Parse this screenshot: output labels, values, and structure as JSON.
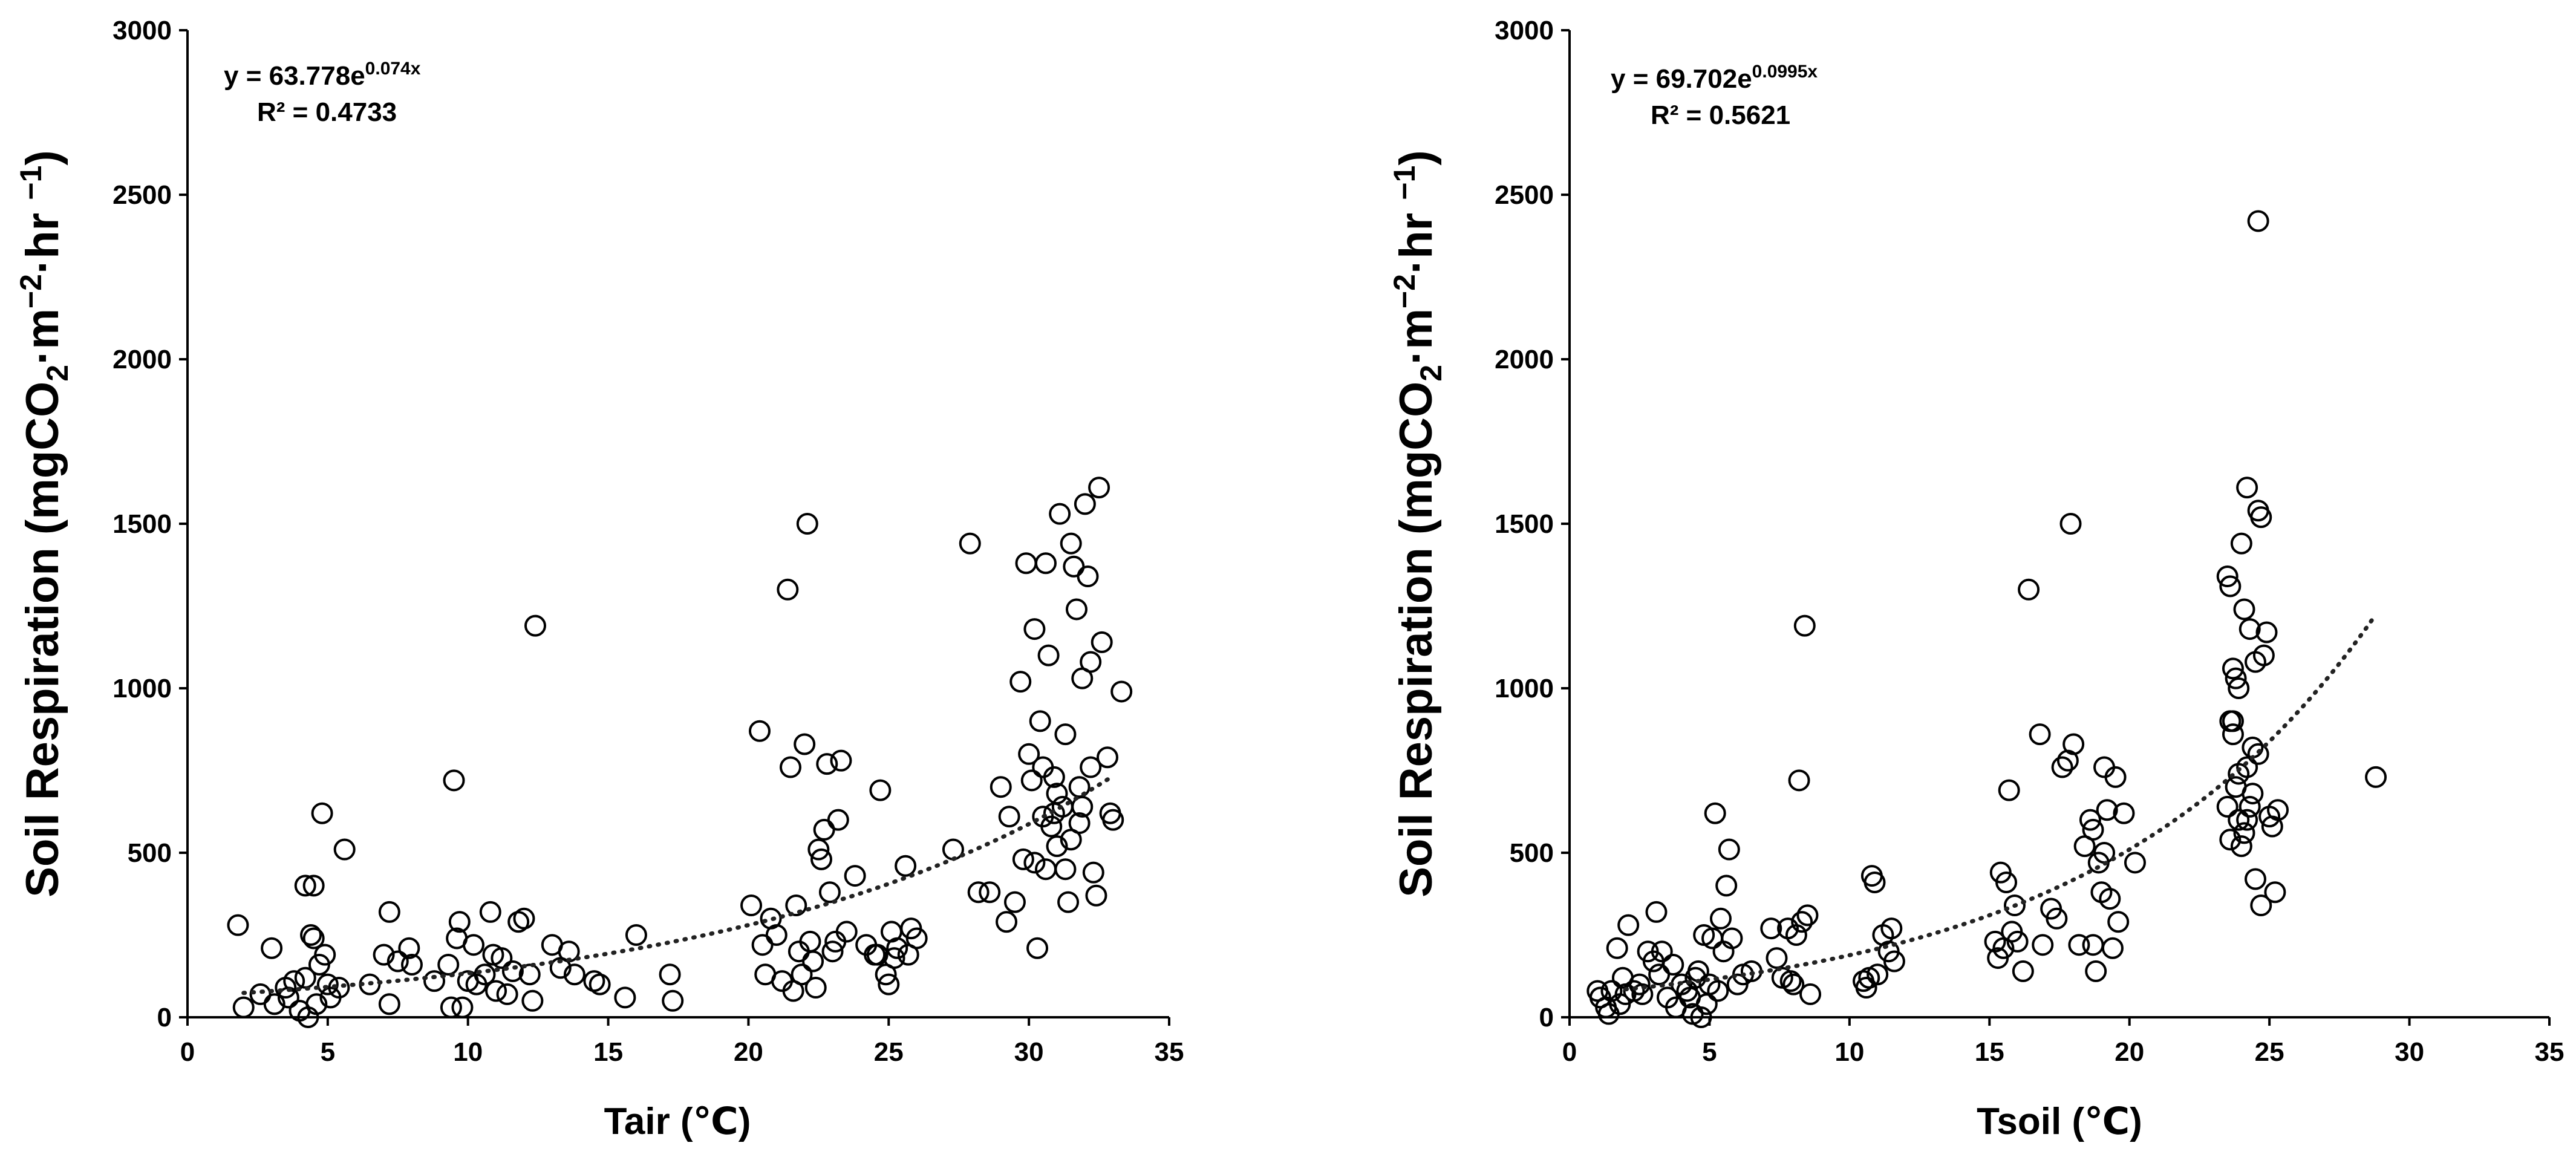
{
  "chart_data": [
    {
      "type": "scatter",
      "panel": "left",
      "xlabel": "Tair (℃)",
      "ylabel": {
        "prefix": "Soil Respiration (mgCO",
        "sub": "2",
        "middle": "·m",
        "sup1": "−2",
        "after": "·hr ",
        "sup2": "−1",
        "suffix": ")"
      },
      "xlim": [
        0,
        35
      ],
      "ylim": [
        0,
        3000
      ],
      "xticks": [
        "0",
        "5",
        "10",
        "15",
        "20",
        "25",
        "30",
        "35"
      ],
      "yticks": [
        "0",
        "500",
        "1000",
        "1500",
        "2000",
        "2500",
        "3000"
      ],
      "equation": {
        "base": "y = 63.778e",
        "exponent": "0.074x",
        "r2": "R² = 0.4733"
      },
      "trendline": {
        "a": 63.778,
        "b": 0.074,
        "x_start": 2,
        "x_end": 33
      },
      "points": [
        [
          1.8,
          280
        ],
        [
          2.0,
          30
        ],
        [
          2.6,
          70
        ],
        [
          3.0,
          210
        ],
        [
          3.1,
          40
        ],
        [
          3.5,
          90
        ],
        [
          3.6,
          60
        ],
        [
          3.8,
          110
        ],
        [
          4.0,
          20
        ],
        [
          4.2,
          120
        ],
        [
          4.2,
          400
        ],
        [
          4.3,
          0
        ],
        [
          4.4,
          250
        ],
        [
          4.5,
          240
        ],
        [
          4.5,
          400
        ],
        [
          4.6,
          40
        ],
        [
          4.7,
          160
        ],
        [
          4.8,
          620
        ],
        [
          4.9,
          190
        ],
        [
          5.0,
          100
        ],
        [
          5.1,
          60
        ],
        [
          5.4,
          90
        ],
        [
          5.6,
          510
        ],
        [
          6.5,
          100
        ],
        [
          7.0,
          190
        ],
        [
          7.2,
          40
        ],
        [
          7.2,
          320
        ],
        [
          7.5,
          170
        ],
        [
          7.9,
          210
        ],
        [
          8.0,
          160
        ],
        [
          8.8,
          110
        ],
        [
          9.3,
          160
        ],
        [
          9.4,
          30
        ],
        [
          9.5,
          720
        ],
        [
          9.6,
          240
        ],
        [
          9.7,
          290
        ],
        [
          9.8,
          30
        ],
        [
          10.0,
          110
        ],
        [
          10.2,
          220
        ],
        [
          10.3,
          100
        ],
        [
          10.6,
          130
        ],
        [
          10.8,
          320
        ],
        [
          10.9,
          190
        ],
        [
          11.0,
          80
        ],
        [
          11.2,
          180
        ],
        [
          11.4,
          70
        ],
        [
          11.6,
          140
        ],
        [
          11.8,
          290
        ],
        [
          12.0,
          300
        ],
        [
          12.2,
          130
        ],
        [
          12.3,
          50
        ],
        [
          12.4,
          1190
        ],
        [
          13.0,
          220
        ],
        [
          13.3,
          150
        ],
        [
          13.6,
          200
        ],
        [
          13.8,
          130
        ],
        [
          14.5,
          110
        ],
        [
          14.7,
          100
        ],
        [
          15.6,
          60
        ],
        [
          16.0,
          250
        ],
        [
          17.2,
          130
        ],
        [
          17.3,
          50
        ],
        [
          20.1,
          340
        ],
        [
          20.4,
          870
        ],
        [
          20.5,
          220
        ],
        [
          20.6,
          130
        ],
        [
          20.8,
          300
        ],
        [
          21.0,
          250
        ],
        [
          21.2,
          110
        ],
        [
          21.4,
          1300
        ],
        [
          21.5,
          760
        ],
        [
          21.6,
          80
        ],
        [
          21.7,
          340
        ],
        [
          21.8,
          200
        ],
        [
          21.9,
          130
        ],
        [
          22.0,
          830
        ],
        [
          22.1,
          1500
        ],
        [
          22.2,
          230
        ],
        [
          22.3,
          170
        ],
        [
          22.4,
          90
        ],
        [
          22.5,
          510
        ],
        [
          22.6,
          480
        ],
        [
          22.7,
          570
        ],
        [
          22.8,
          770
        ],
        [
          22.9,
          380
        ],
        [
          23.0,
          200
        ],
        [
          23.1,
          230
        ],
        [
          23.2,
          600
        ],
        [
          23.3,
          780
        ],
        [
          23.5,
          260
        ],
        [
          23.8,
          430
        ],
        [
          24.2,
          220
        ],
        [
          24.5,
          190
        ],
        [
          24.6,
          190
        ],
        [
          24.7,
          690
        ],
        [
          24.9,
          130
        ],
        [
          25.0,
          100
        ],
        [
          25.1,
          260
        ],
        [
          25.2,
          180
        ],
        [
          25.3,
          210
        ],
        [
          25.6,
          460
        ],
        [
          25.7,
          190
        ],
        [
          25.8,
          270
        ],
        [
          26.0,
          240
        ],
        [
          27.3,
          510
        ],
        [
          27.9,
          1440
        ],
        [
          28.2,
          380
        ],
        [
          28.6,
          380
        ],
        [
          29.0,
          700
        ],
        [
          29.2,
          290
        ],
        [
          29.3,
          610
        ],
        [
          29.5,
          350
        ],
        [
          29.7,
          1020
        ],
        [
          29.9,
          1380
        ],
        [
          30.0,
          800
        ],
        [
          30.1,
          720
        ],
        [
          30.2,
          1180
        ],
        [
          30.3,
          210
        ],
        [
          30.4,
          900
        ],
        [
          30.5,
          610
        ],
        [
          30.6,
          1380
        ],
        [
          30.7,
          1100
        ],
        [
          30.8,
          580
        ],
        [
          30.9,
          730
        ],
        [
          31.0,
          680
        ],
        [
          31.1,
          1530
        ],
        [
          31.2,
          640
        ],
        [
          31.3,
          860
        ],
        [
          31.4,
          350
        ],
        [
          31.5,
          1440
        ],
        [
          31.6,
          1370
        ],
        [
          31.7,
          1240
        ],
        [
          31.8,
          590
        ],
        [
          31.9,
          1030
        ],
        [
          32.0,
          1560
        ],
        [
          32.1,
          1340
        ],
        [
          32.2,
          1080
        ],
        [
          32.3,
          440
        ],
        [
          32.4,
          370
        ],
        [
          32.5,
          1610
        ],
        [
          32.6,
          1140
        ],
        [
          32.8,
          790
        ],
        [
          32.9,
          620
        ],
        [
          33.0,
          600
        ],
        [
          33.3,
          990
        ],
        [
          30.2,
          470
        ],
        [
          30.6,
          450
        ],
        [
          31.0,
          520
        ],
        [
          31.3,
          450
        ],
        [
          31.8,
          700
        ],
        [
          32.2,
          760
        ],
        [
          31.5,
          540
        ],
        [
          30.9,
          620
        ],
        [
          31.9,
          640
        ],
        [
          30.5,
          760
        ],
        [
          29.8,
          480
        ]
      ]
    },
    {
      "type": "scatter",
      "panel": "right",
      "xlabel": "Tsoil (℃)",
      "ylabel": {
        "prefix": "Soil Respiration (mgCO",
        "sub": "2",
        "middle": "·m",
        "sup1": "−2",
        "after": "·hr ",
        "sup2": "−1",
        "suffix": ")"
      },
      "xlim": [
        0,
        35
      ],
      "ylim": [
        0,
        3000
      ],
      "xticks": [
        "0",
        "5",
        "10",
        "15",
        "20",
        "25",
        "30",
        "35"
      ],
      "yticks": [
        "0",
        "500",
        "1000",
        "1500",
        "2000",
        "2500",
        "3000"
      ],
      "equation": {
        "base": "y = 69.702e",
        "exponent": "0.0995x",
        "r2": "R² = 0.5621"
      },
      "trendline": {
        "a": 69.702,
        "b": 0.0995,
        "x_start": 2,
        "x_end": 28.8
      },
      "points": [
        [
          1.0,
          80
        ],
        [
          1.1,
          60
        ],
        [
          1.3,
          30
        ],
        [
          1.4,
          10
        ],
        [
          1.5,
          80
        ],
        [
          1.7,
          210
        ],
        [
          1.8,
          40
        ],
        [
          1.9,
          120
        ],
        [
          2.0,
          70
        ],
        [
          2.1,
          280
        ],
        [
          2.3,
          80
        ],
        [
          2.5,
          100
        ],
        [
          2.6,
          70
        ],
        [
          2.8,
          200
        ],
        [
          3.0,
          170
        ],
        [
          3.1,
          320
        ],
        [
          3.2,
          130
        ],
        [
          3.3,
          200
        ],
        [
          3.5,
          60
        ],
        [
          3.7,
          160
        ],
        [
          3.8,
          30
        ],
        [
          4.0,
          100
        ],
        [
          4.2,
          80
        ],
        [
          4.3,
          60
        ],
        [
          4.4,
          10
        ],
        [
          4.5,
          120
        ],
        [
          4.6,
          140
        ],
        [
          4.7,
          0
        ],
        [
          4.8,
          250
        ],
        [
          4.9,
          40
        ],
        [
          5.0,
          100
        ],
        [
          5.1,
          240
        ],
        [
          5.2,
          620
        ],
        [
          5.3,
          80
        ],
        [
          5.4,
          300
        ],
        [
          5.5,
          200
        ],
        [
          5.6,
          400
        ],
        [
          5.7,
          510
        ],
        [
          5.8,
          240
        ],
        [
          6.0,
          100
        ],
        [
          6.2,
          130
        ],
        [
          6.5,
          140
        ],
        [
          7.2,
          270
        ],
        [
          7.4,
          180
        ],
        [
          7.6,
          120
        ],
        [
          7.8,
          270
        ],
        [
          7.9,
          110
        ],
        [
          8.0,
          100
        ],
        [
          8.2,
          720
        ],
        [
          8.3,
          290
        ],
        [
          8.4,
          1190
        ],
        [
          8.5,
          310
        ],
        [
          8.6,
          70
        ],
        [
          8.1,
          250
        ],
        [
          10.5,
          110
        ],
        [
          10.6,
          90
        ],
        [
          10.7,
          120
        ],
        [
          10.8,
          430
        ],
        [
          10.9,
          410
        ],
        [
          11.0,
          130
        ],
        [
          11.2,
          250
        ],
        [
          11.4,
          200
        ],
        [
          11.5,
          270
        ],
        [
          11.6,
          170
        ],
        [
          15.2,
          230
        ],
        [
          15.3,
          180
        ],
        [
          15.4,
          440
        ],
        [
          15.5,
          210
        ],
        [
          15.6,
          410
        ],
        [
          15.7,
          690
        ],
        [
          15.8,
          260
        ],
        [
          15.9,
          340
        ],
        [
          16.0,
          230
        ],
        [
          16.2,
          140
        ],
        [
          16.4,
          1300
        ],
        [
          16.8,
          860
        ],
        [
          16.9,
          220
        ],
        [
          17.2,
          330
        ],
        [
          17.4,
          300
        ],
        [
          17.6,
          760
        ],
        [
          17.8,
          780
        ],
        [
          17.9,
          1500
        ],
        [
          18.0,
          830
        ],
        [
          18.2,
          220
        ],
        [
          18.4,
          520
        ],
        [
          18.6,
          600
        ],
        [
          18.7,
          220
        ],
        [
          18.8,
          140
        ],
        [
          18.9,
          470
        ],
        [
          19.0,
          380
        ],
        [
          19.1,
          760
        ],
        [
          19.2,
          630
        ],
        [
          19.3,
          360
        ],
        [
          19.4,
          210
        ],
        [
          19.5,
          730
        ],
        [
          19.6,
          290
        ],
        [
          19.8,
          620
        ],
        [
          20.2,
          470
        ],
        [
          18.7,
          570
        ],
        [
          19.1,
          500
        ],
        [
          23.5,
          1340
        ],
        [
          23.6,
          1310
        ],
        [
          23.7,
          1060
        ],
        [
          23.8,
          1030
        ],
        [
          23.9,
          1000
        ],
        [
          24.0,
          1440
        ],
        [
          24.1,
          1240
        ],
        [
          24.2,
          1610
        ],
        [
          24.3,
          1180
        ],
        [
          24.4,
          820
        ],
        [
          24.5,
          1080
        ],
        [
          24.6,
          1540
        ],
        [
          24.7,
          1520
        ],
        [
          24.8,
          1100
        ],
        [
          24.9,
          1170
        ],
        [
          25.0,
          610
        ],
        [
          25.1,
          580
        ],
        [
          25.2,
          380
        ],
        [
          25.3,
          630
        ],
        [
          23.6,
          900
        ],
        [
          23.7,
          860
        ],
        [
          23.8,
          700
        ],
        [
          23.9,
          740
        ],
        [
          24.0,
          520
        ],
        [
          24.1,
          560
        ],
        [
          24.2,
          600
        ],
        [
          24.3,
          640
        ],
        [
          24.4,
          680
        ],
        [
          24.5,
          420
        ],
        [
          24.6,
          2420
        ],
        [
          24.7,
          340
        ],
        [
          23.5,
          640
        ],
        [
          23.6,
          540
        ],
        [
          23.9,
          600
        ],
        [
          24.2,
          760
        ],
        [
          24.6,
          800
        ],
        [
          23.7,
          900
        ],
        [
          28.8,
          730
        ]
      ]
    }
  ]
}
